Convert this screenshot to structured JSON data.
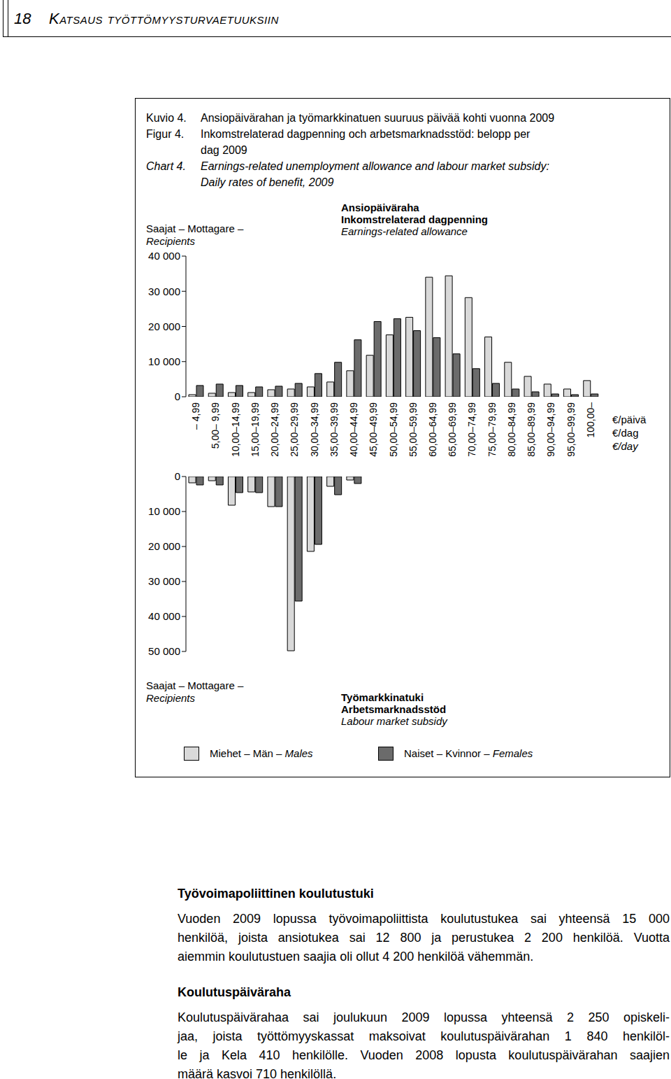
{
  "page": {
    "number": "18",
    "running_head": "Katsaus työttömyysturvaetuuksiin"
  },
  "figure": {
    "captions": [
      {
        "label": "Kuvio 4.",
        "lines": [
          "Ansiopäivärahan ja työmarkkinatuen suuruus päivää kohti vuonna 2009"
        ]
      },
      {
        "label": "Figur 4.",
        "lines": [
          "Inkomstrelaterad dagpenning och arbetsmarknadsstöd: belopp per",
          "dag 2009"
        ]
      },
      {
        "label": "Chart 4.",
        "lines": [
          "Earnings-related unemployment allowance and labour market subsidy:",
          "Daily rates of benefit, 2009"
        ]
      }
    ]
  },
  "chart_data": [
    {
      "type": "bar",
      "title": [
        "Ansiopäiväraha",
        "Inkomstrelaterad dagpenning",
        "Earnings-related allowance"
      ],
      "ylabel": [
        "Saajat – Mottagare –",
        "Recipients"
      ],
      "xlabel": [
        "€/päivä",
        "€/dag",
        "€/day"
      ],
      "categories": [
        "– 4,99",
        "5,00– 9,99",
        "10,00–14,99",
        "15,00–19,99",
        "20,00–24,99",
        "25,00–29,99",
        "30,00–34,99",
        "35,00–39,99",
        "40,00–44,99",
        "45,00–49,99",
        "50,00–54,99",
        "55,00–59,99",
        "60,00–64,99",
        "65,00–69,99",
        "70,00–74,99",
        "75,00–79,99",
        "80,00–84,99",
        "85,00–89,99",
        "90,00–94,99",
        "95,00–99,99",
        "100,00–"
      ],
      "series": [
        {
          "name": "Miehet – Män – Males",
          "color": "#d9d9d9",
          "values": [
            600,
            1000,
            1200,
            1200,
            2000,
            2200,
            2800,
            4200,
            7400,
            11800,
            17600,
            22600,
            34000,
            34400,
            28200,
            17000,
            9800,
            5800,
            3600,
            2200,
            4600
          ]
        },
        {
          "name": "Naiset – Kvinnor – Females",
          "color": "#6b6b6b",
          "values": [
            3200,
            3600,
            3200,
            2800,
            3000,
            3800,
            6600,
            9800,
            16200,
            21400,
            22200,
            18800,
            16800,
            12200,
            8000,
            3800,
            2200,
            1400,
            800,
            600,
            800
          ]
        }
      ],
      "ylim": [
        0,
        40000
      ],
      "yticks": [
        0,
        {
          "value": 10000,
          "label": "10 000"
        },
        {
          "value": 20000,
          "label": "20 000"
        },
        {
          "value": 30000,
          "label": "30 000"
        },
        {
          "value": 40000,
          "label": "40 000"
        }
      ],
      "legend": "bottom",
      "grid": false
    },
    {
      "type": "bar",
      "title": [
        "Työmarkkinatuki",
        "Arbetsmarknadsstöd",
        "Labour market subsidy"
      ],
      "ylabel": [
        "Saajat – Mottagare –",
        "Recipients"
      ],
      "categories": [
        "– 4,99",
        "5,00– 9,99",
        "10,00–14,99",
        "15,00–19,99",
        "20,00–24,99",
        "25,00–29,99",
        "30,00–34,99",
        "35,00–39,99",
        "40,00–44,99",
        "45,00–49,99",
        "50,00–54,99",
        "55,00–59,99",
        "60,00–64,99",
        "65,00–69,99",
        "70,00–74,99",
        "75,00–79,99",
        "80,00–84,99",
        "85,00–89,99",
        "90,00–94,99",
        "95,00–99,99",
        "100,00–"
      ],
      "series": [
        {
          "name": "Miehet – Män – Males",
          "color": "#d9d9d9",
          "values": [
            1800,
            1200,
            8200,
            4400,
            8600,
            49800,
            21400,
            2800,
            1000,
            0,
            0,
            0,
            0,
            0,
            0,
            0,
            0,
            0,
            0,
            0,
            0
          ]
        },
        {
          "name": "Naiset – Kvinnor – Females",
          "color": "#6b6b6b",
          "values": [
            2400,
            2400,
            4600,
            4600,
            8600,
            35600,
            19400,
            5200,
            2000,
            0,
            0,
            0,
            0,
            0,
            0,
            0,
            0,
            0,
            0,
            0,
            0
          ]
        }
      ],
      "ylim": [
        0,
        50000
      ],
      "yticks": [
        0,
        {
          "value": 10000,
          "label": "10 000"
        },
        {
          "value": 20000,
          "label": "20 000"
        },
        {
          "value": 30000,
          "label": "30 000"
        },
        {
          "value": 40000,
          "label": "40 000"
        },
        {
          "value": 50000,
          "label": "50 000"
        }
      ],
      "tick_labels": "y",
      "grid": false
    }
  ],
  "text": {
    "sections": [
      {
        "heading": "Työvoimapoliittinen koulutustuki",
        "lines": [
          "Vuoden 2009 lopussa työvoimapoliittista koulutustukea sai yhteensä 15 000",
          "henkilöä, joista ansiotukea sai 12 800 ja perustukea 2 200 henkilöä. Vuotta",
          "aiemmin koulutustuen saajia oli ollut 4 200 henkilöä vähemmän."
        ]
      },
      {
        "heading": "Koulutuspäiväraha",
        "lines": [
          "Koulutuspäivärahaa sai joulukuun 2009 lopussa yhteensä 2 250 opiskeli-",
          "jaa, joista työttömyyskassat maksoivat koulutuspäivärahan 1 840 henkilöl-",
          "le ja Kela 410 henkilölle. Vuoden 2008 lopusta koulutuspäivärahan saajien",
          "määrä kasvoi 710 henkilöllä."
        ]
      }
    ]
  }
}
